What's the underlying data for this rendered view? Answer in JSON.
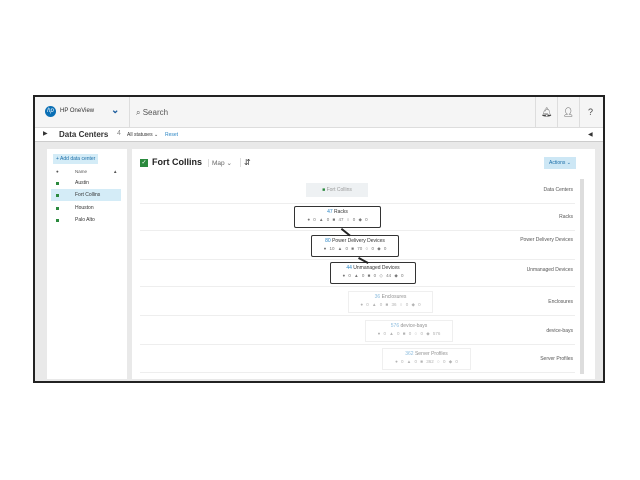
{
  "header": {
    "app_name": "HP OneView",
    "search_placeholder": "Search",
    "icons": [
      "bell-icon",
      "user-icon",
      "help-icon"
    ],
    "help": "?"
  },
  "subheader": {
    "title": "Data Centers",
    "count": "4",
    "filter": "All statuses ⌄",
    "reset": "Reset"
  },
  "sidebar": {
    "add_button": "+ Add data center",
    "col_name": "Name",
    "items": [
      {
        "label": "Austin"
      },
      {
        "label": "Fort Collins",
        "selected": true
      },
      {
        "label": "Houston"
      },
      {
        "label": "Palo Alto"
      }
    ]
  },
  "main": {
    "title": "Fort Collins",
    "view": "Map ⌄",
    "actions": "Actions ⌄",
    "rows": [
      "Data Centers",
      "Racks",
      "Power Delivery Devices",
      "Unmanaged Devices",
      "Enclosures",
      "device-bays",
      "Server Profiles"
    ],
    "nodes": [
      {
        "label": "Fort Collins",
        "total": "",
        "counts": ""
      },
      {
        "total": "47",
        "label": "Racks",
        "counts": "● 0  ▲ 0  ■ 47  ○ 0  ◆ 0"
      },
      {
        "total": "80",
        "label": "Power Delivery Devices",
        "counts": "● 10  ▲ 0  ■ 70  ○ 0  ◆ 0"
      },
      {
        "total": "44",
        "label": "Unmanaged Devices",
        "counts": "● 0  ▲ 0  ■ 0  ◇ 44  ◆ 0"
      },
      {
        "total": "36",
        "label": "Enclosures",
        "counts": "● 0  ▲ 0  ■ 36  ○ 0  ◆ 0"
      },
      {
        "total": "576",
        "label": "device-bays",
        "counts": "● 0  ▲ 0  ■ 0  ○ 0  ◆ 576"
      },
      {
        "total": "362",
        "label": "Server Profiles",
        "counts": "● 0  ▲ 0  ■ 362  ○ 0  ◆ 0"
      }
    ]
  },
  "colors": {
    "accent": "#2a85c4",
    "ok": "#2b8a3e",
    "critical": "#c8102e"
  }
}
